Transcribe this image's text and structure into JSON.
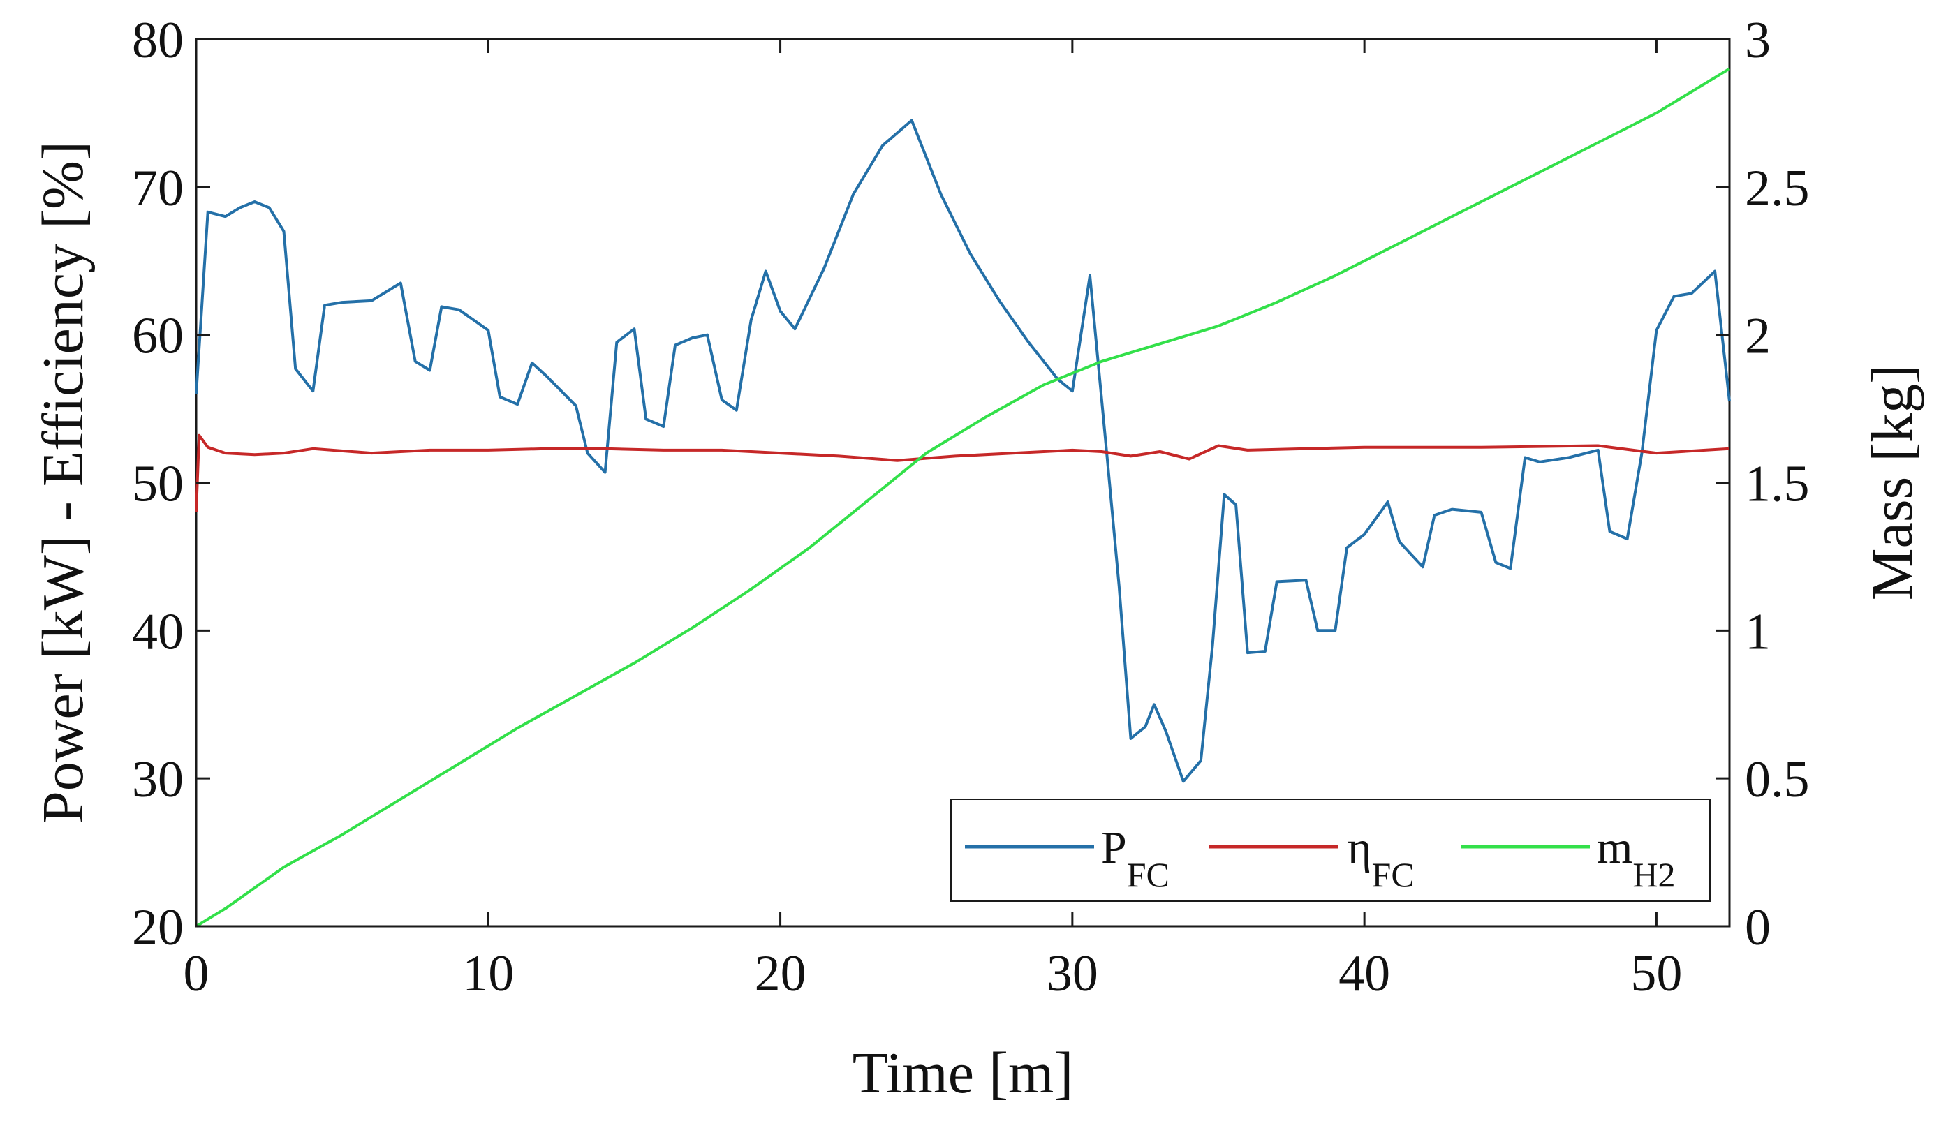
{
  "chart_data": {
    "type": "line",
    "xlabel": "Time [m]",
    "ylabel_left": "Power [kW] - Efficiency [%]",
    "ylabel_right": "Mass [kg]",
    "xlim": [
      0,
      52.5
    ],
    "ylim_left": [
      20,
      80
    ],
    "ylim_right": [
      0,
      3
    ],
    "x_ticks": [
      "0",
      "10",
      "20",
      "30",
      "40",
      "50"
    ],
    "y_left_ticks": [
      "20",
      "30",
      "40",
      "50",
      "60",
      "70",
      "80"
    ],
    "y_right_ticks": [
      "0",
      "0.5",
      "1",
      "1.5",
      "2",
      "2.5",
      "3"
    ],
    "grid": false,
    "legend_placement": "bottom-right",
    "series": [
      {
        "name": "P",
        "name_sub": "FC",
        "axis": "left",
        "color": "#2470a8",
        "points": [
          [
            0,
            56
          ],
          [
            0.4,
            68.3
          ],
          [
            1.0,
            68.0
          ],
          [
            1.5,
            68.6
          ],
          [
            2.0,
            69.0
          ],
          [
            2.5,
            68.6
          ],
          [
            3.0,
            67.0
          ],
          [
            3.4,
            57.7
          ],
          [
            4.0,
            56.2
          ],
          [
            4.4,
            62.0
          ],
          [
            5.0,
            62.2
          ],
          [
            6.0,
            62.3
          ],
          [
            7.0,
            63.5
          ],
          [
            7.5,
            58.2
          ],
          [
            8.0,
            57.6
          ],
          [
            8.4,
            61.9
          ],
          [
            9.0,
            61.7
          ],
          [
            10.0,
            60.3
          ],
          [
            10.4,
            55.8
          ],
          [
            11.0,
            55.3
          ],
          [
            11.5,
            58.1
          ],
          [
            12.0,
            57.2
          ],
          [
            13.0,
            55.2
          ],
          [
            13.4,
            52.0
          ],
          [
            14.0,
            50.7
          ],
          [
            14.4,
            59.5
          ],
          [
            15.0,
            60.4
          ],
          [
            15.4,
            54.3
          ],
          [
            16.0,
            53.8
          ],
          [
            16.4,
            59.3
          ],
          [
            17.0,
            59.8
          ],
          [
            17.5,
            60.0
          ],
          [
            18.0,
            55.6
          ],
          [
            18.5,
            54.9
          ],
          [
            19.0,
            61.0
          ],
          [
            19.5,
            64.3
          ],
          [
            20.0,
            61.6
          ],
          [
            20.5,
            60.4
          ],
          [
            21.5,
            64.5
          ],
          [
            22.5,
            69.5
          ],
          [
            23.5,
            72.8
          ],
          [
            24.5,
            74.5
          ],
          [
            25.5,
            69.5
          ],
          [
            26.5,
            65.5
          ],
          [
            27.5,
            62.3
          ],
          [
            28.5,
            59.5
          ],
          [
            29.5,
            57.0
          ],
          [
            30.0,
            56.2
          ],
          [
            30.6,
            64.0
          ],
          [
            31.2,
            51.5
          ],
          [
            31.6,
            43.0
          ],
          [
            32.0,
            32.7
          ],
          [
            32.5,
            33.5
          ],
          [
            32.8,
            35.0
          ],
          [
            33.2,
            33.2
          ],
          [
            33.8,
            29.8
          ],
          [
            34.4,
            31.2
          ],
          [
            34.8,
            39.0
          ],
          [
            35.2,
            49.2
          ],
          [
            35.6,
            48.5
          ],
          [
            36.0,
            38.5
          ],
          [
            36.6,
            38.6
          ],
          [
            37.0,
            43.3
          ],
          [
            38.0,
            43.4
          ],
          [
            38.4,
            40.0
          ],
          [
            39.0,
            40.0
          ],
          [
            39.4,
            45.6
          ],
          [
            40.0,
            46.5
          ],
          [
            40.8,
            48.7
          ],
          [
            41.2,
            46.0
          ],
          [
            42.0,
            44.3
          ],
          [
            42.4,
            47.8
          ],
          [
            43.0,
            48.2
          ],
          [
            44.0,
            48.0
          ],
          [
            44.5,
            44.6
          ],
          [
            45.0,
            44.2
          ],
          [
            45.5,
            51.7
          ],
          [
            46.0,
            51.4
          ],
          [
            47.0,
            51.7
          ],
          [
            48.0,
            52.2
          ],
          [
            48.4,
            46.7
          ],
          [
            49.0,
            46.2
          ],
          [
            49.5,
            52.0
          ],
          [
            50.0,
            60.3
          ],
          [
            50.6,
            62.6
          ],
          [
            51.2,
            62.8
          ],
          [
            52.0,
            64.3
          ],
          [
            52.5,
            55.5
          ]
        ]
      },
      {
        "name": "η",
        "name_sub": "FC",
        "axis": "left",
        "color": "#c62828",
        "points": [
          [
            0,
            48.0
          ],
          [
            0.1,
            53.2
          ],
          [
            0.4,
            52.4
          ],
          [
            1.0,
            52.0
          ],
          [
            2.0,
            51.9
          ],
          [
            3.0,
            52.0
          ],
          [
            4.0,
            52.3
          ],
          [
            6.0,
            52.0
          ],
          [
            8.0,
            52.2
          ],
          [
            10.0,
            52.2
          ],
          [
            12.0,
            52.3
          ],
          [
            14.0,
            52.3
          ],
          [
            16.0,
            52.2
          ],
          [
            18.0,
            52.2
          ],
          [
            20.0,
            52.0
          ],
          [
            22.0,
            51.8
          ],
          [
            24.0,
            51.5
          ],
          [
            26.0,
            51.8
          ],
          [
            28.0,
            52.0
          ],
          [
            30.0,
            52.2
          ],
          [
            31.0,
            52.1
          ],
          [
            32.0,
            51.8
          ],
          [
            33.0,
            52.1
          ],
          [
            34.0,
            51.6
          ],
          [
            35.0,
            52.5
          ],
          [
            36.0,
            52.2
          ],
          [
            38.0,
            52.3
          ],
          [
            40.0,
            52.4
          ],
          [
            44.0,
            52.4
          ],
          [
            48.0,
            52.5
          ],
          [
            50.0,
            52.0
          ],
          [
            52.5,
            52.3
          ]
        ]
      },
      {
        "name": "m",
        "name_sub": "H2",
        "axis": "right",
        "color": "#33e04a",
        "points": [
          [
            0,
            0
          ],
          [
            1,
            0.06
          ],
          [
            3,
            0.2
          ],
          [
            5,
            0.31
          ],
          [
            7,
            0.43
          ],
          [
            9,
            0.55
          ],
          [
            11,
            0.67
          ],
          [
            13,
            0.78
          ],
          [
            15,
            0.89
          ],
          [
            17,
            1.01
          ],
          [
            19,
            1.14
          ],
          [
            21,
            1.28
          ],
          [
            23,
            1.44
          ],
          [
            25,
            1.6
          ],
          [
            27,
            1.72
          ],
          [
            29,
            1.83
          ],
          [
            30,
            1.87
          ],
          [
            31,
            1.91
          ],
          [
            33,
            1.97
          ],
          [
            35,
            2.03
          ],
          [
            37,
            2.11
          ],
          [
            39,
            2.2
          ],
          [
            41,
            2.3
          ],
          [
            43,
            2.4
          ],
          [
            45,
            2.5
          ],
          [
            47,
            2.6
          ],
          [
            49,
            2.7
          ],
          [
            50,
            2.75
          ],
          [
            52.5,
            2.9
          ]
        ]
      }
    ]
  }
}
